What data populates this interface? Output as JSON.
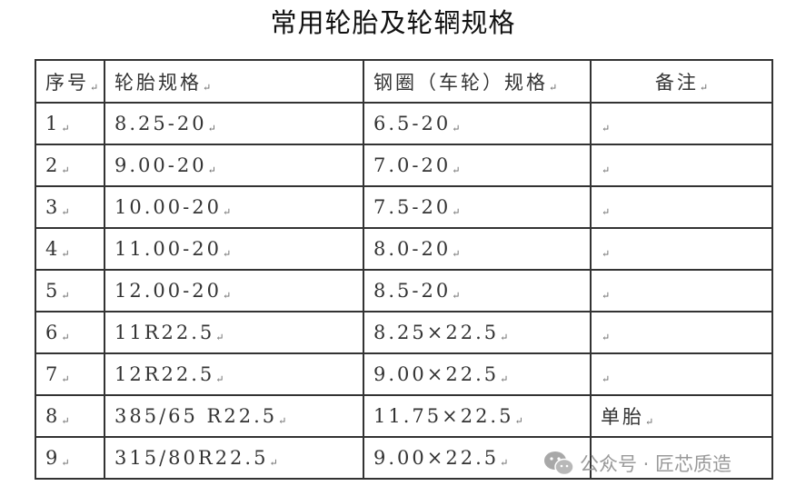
{
  "title": "常用轮胎及轮辋规格",
  "table": {
    "headers": [
      "序号",
      "轮胎规格",
      "钢圈（车轮）规格",
      "备注"
    ],
    "rows": [
      [
        "1",
        "8.25-20",
        "6.5-20",
        ""
      ],
      [
        "2",
        "9.00-20",
        "7.0-20",
        ""
      ],
      [
        "3",
        "10.00-20",
        "7.5-20",
        ""
      ],
      [
        "4",
        "11.00-20",
        "8.0-20",
        ""
      ],
      [
        "5",
        "12.00-20",
        "8.5-20",
        ""
      ],
      [
        "6",
        "11R22.5",
        "8.25×22.5",
        ""
      ],
      [
        "7",
        "12R22.5",
        "9.00×22.5",
        ""
      ],
      [
        "8",
        "385/65 R22.5",
        "11.75×22.5",
        "单胎"
      ],
      [
        "9",
        "315/80R22.5",
        "9.00×22.5",
        ""
      ]
    ]
  },
  "watermark": {
    "icon": "wechat-icon",
    "text": "公众号 · 匠芯质造"
  }
}
